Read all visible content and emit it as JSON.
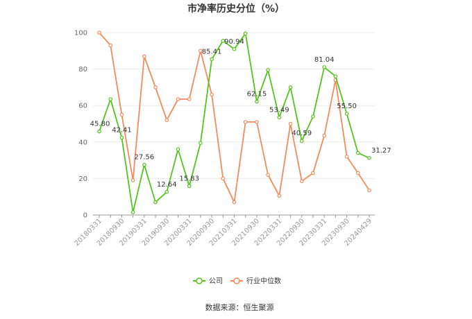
{
  "chart_data": {
    "type": "line",
    "title": "市净率历史分位（%）",
    "xlabel": "",
    "ylabel": "",
    "ylim": [
      0,
      100
    ],
    "yticks": [
      0,
      20,
      40,
      60,
      80,
      100
    ],
    "grid": "horizontal",
    "legend_position": "bottom",
    "x": [
      "20180331",
      "20180630",
      "20180930",
      "20181231",
      "20190331",
      "20190630",
      "20190930",
      "20191231",
      "20200331",
      "20200630",
      "20200930",
      "20201231",
      "20210331",
      "20210630",
      "20210930",
      "20211231",
      "20220331",
      "20220630",
      "20220930",
      "20221231",
      "20230331",
      "20230630",
      "20230930",
      "20231231",
      "20240429"
    ],
    "x_tick_labels": [
      "20180331",
      "",
      "20180930",
      "",
      "20190331",
      "",
      "20190930",
      "",
      "20200331",
      "",
      "20200930",
      "",
      "20210331",
      "",
      "20210930",
      "",
      "20220331",
      "",
      "20220930",
      "",
      "20230331",
      "",
      "20230930",
      "",
      "20240429"
    ],
    "series": [
      {
        "name": "公司",
        "color": "#52c41a",
        "values": [
          45.8,
          63.5,
          42.41,
          1.5,
          27.56,
          7.0,
          12.64,
          36.0,
          15.83,
          39.5,
          85.41,
          95.5,
          90.94,
          99.5,
          62.15,
          79.5,
          53.49,
          70.0,
          40.59,
          54.0,
          81.04,
          76.0,
          55.5,
          34.0,
          31.27
        ],
        "data_labels": [
          "45.80",
          "",
          "42.41",
          "",
          "27.56",
          "",
          "12.64",
          "",
          "15.83",
          "",
          "85.41",
          "",
          "90.94",
          "",
          "62.15",
          "",
          "53.49",
          "",
          "40.59",
          "",
          "81.04",
          "",
          "55.50",
          "",
          "31.27"
        ]
      },
      {
        "name": "行业中位数",
        "color": "#f5895b",
        "values": [
          100,
          93,
          55,
          19,
          87,
          70,
          52,
          63.5,
          63.5,
          90,
          66,
          20,
          7,
          51,
          51,
          22,
          10.5,
          50,
          18.5,
          23,
          43.5,
          74,
          32,
          23,
          13.5
        ]
      }
    ]
  },
  "source": "数据来源：恒生聚源"
}
